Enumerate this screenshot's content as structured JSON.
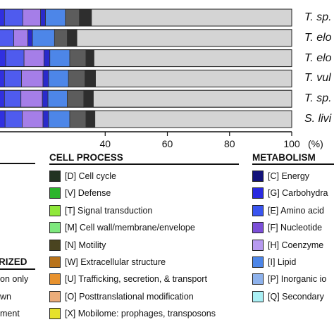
{
  "chart_data": {
    "type": "bar",
    "orientation": "horizontal",
    "stacked": true,
    "xlabel": "(%)",
    "xlim": [
      0,
      100
    ],
    "xticks": [
      {
        "value": 40,
        "label": "40"
      },
      {
        "value": 60,
        "label": "60"
      },
      {
        "value": 80,
        "label": "80"
      },
      {
        "value": 100,
        "label": "100"
      }
    ],
    "categories": [
      "T. sp.",
      "T. elo",
      "T. elo",
      "T. vul",
      "T. sp.",
      "S. livi"
    ],
    "segment_colors": [
      "#1b1b8f",
      "#3030e0",
      "#4f5bee",
      "#a57ee8",
      "#2a2acb",
      "#4d86e8",
      "#5c5c5c",
      "#2e2e2e",
      "#d4d4d4"
    ],
    "rows": [
      [
        0,
        7.6,
        13.5,
        19.2,
        20.8,
        27.2,
        31.7,
        35.6,
        100
      ],
      [
        0,
        4.7,
        10.6,
        15.1,
        16.6,
        23.7,
        27.8,
        30.9,
        100
      ],
      [
        4.0,
        8.0,
        13.9,
        20.3,
        22.2,
        28.6,
        33.8,
        36.4,
        100
      ],
      [
        3.3,
        7.6,
        13.1,
        20.0,
        21.8,
        28.2,
        33.5,
        36.9,
        100
      ],
      [
        3.3,
        7.6,
        12.9,
        19.8,
        21.6,
        27.8,
        33.1,
        36.2,
        100
      ],
      [
        3.1,
        7.8,
        13.3,
        20.0,
        21.8,
        28.6,
        33.8,
        36.7,
        100
      ]
    ]
  },
  "cell_process": {
    "title": "CELL PROCESS",
    "items": [
      {
        "label": "[D] Cell cycle",
        "color": "#223322"
      },
      {
        "label": "[V] Defense",
        "color": "#2bb52b"
      },
      {
        "label": "[T] Signal transduction",
        "color": "#8fe83a"
      },
      {
        "label": "[M] Cell wall/membrane/envelope",
        "color": "#7de87d"
      },
      {
        "label": "[N] Motility",
        "color": "#4a4420"
      },
      {
        "label": "[W] Extracellular structure",
        "color": "#b8731c"
      },
      {
        "label": "[U] Trafficking, secretion, & transport",
        "color": "#e8922e"
      },
      {
        "label": "[O] Posttranslational modification",
        "color": "#ecad7a"
      },
      {
        "label": "[X] Mobilome: prophages, transposons",
        "color": "#e6e12a"
      }
    ]
  },
  "metabolism": {
    "title": "METABOLISM",
    "items": [
      {
        "label": "[C] Energy",
        "color": "#13137a"
      },
      {
        "label": "[G] Carbohydra",
        "color": "#2a2ae0"
      },
      {
        "label": "[E] Amino acid",
        "color": "#3a55f0"
      },
      {
        "label": "[F] Nucleotide",
        "color": "#7c4fd8"
      },
      {
        "label": "[H] Coenzyme",
        "color": "#b79af0"
      },
      {
        "label": "[I] Lipid",
        "color": "#4d86e8"
      },
      {
        "label": "[P] Inorganic io",
        "color": "#8eb2ec"
      },
      {
        "label": "[Q] Secondary",
        "color": "#aaf0f5"
      }
    ]
  },
  "left_panel": {
    "heading": "RIZED",
    "lines": [
      "on only",
      "wn",
      "ment"
    ]
  }
}
